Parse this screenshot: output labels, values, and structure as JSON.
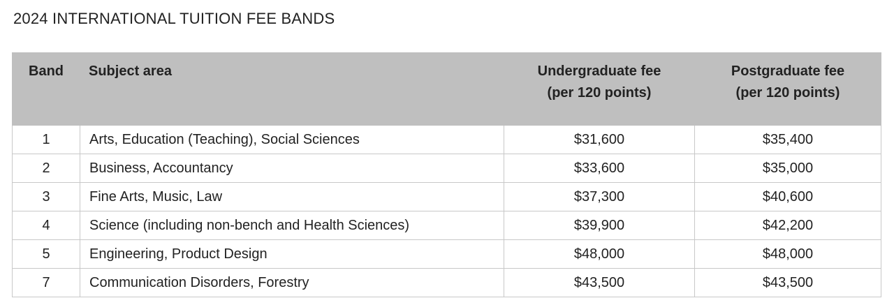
{
  "header": {
    "title": "2024 INTERNATIONAL TUITION FEE BANDS"
  },
  "table": {
    "columns": [
      [
        "Band"
      ],
      [
        "Subject area"
      ],
      [
        "Undergraduate fee",
        "(per 120 points)"
      ],
      [
        "Postgraduate fee",
        "(per 120 points)"
      ]
    ],
    "rows": [
      [
        "1",
        "Arts, Education (Teaching), Social Sciences",
        "$31,600",
        "$35,400"
      ],
      [
        "2",
        "Business, Accountancy",
        "$33,600",
        "$35,000"
      ],
      [
        "3",
        "Fine Arts, Music, Law",
        "$37,300",
        "$40,600"
      ],
      [
        "4",
        "Science (including non-bench and Health Sciences)",
        "$39,900",
        "$42,200"
      ],
      [
        "5",
        "Engineering, Product Design",
        "$48,000",
        "$48,000"
      ],
      [
        "7",
        "Communication Disorders, Forestry",
        "$43,500",
        "$43,500"
      ]
    ]
  }
}
